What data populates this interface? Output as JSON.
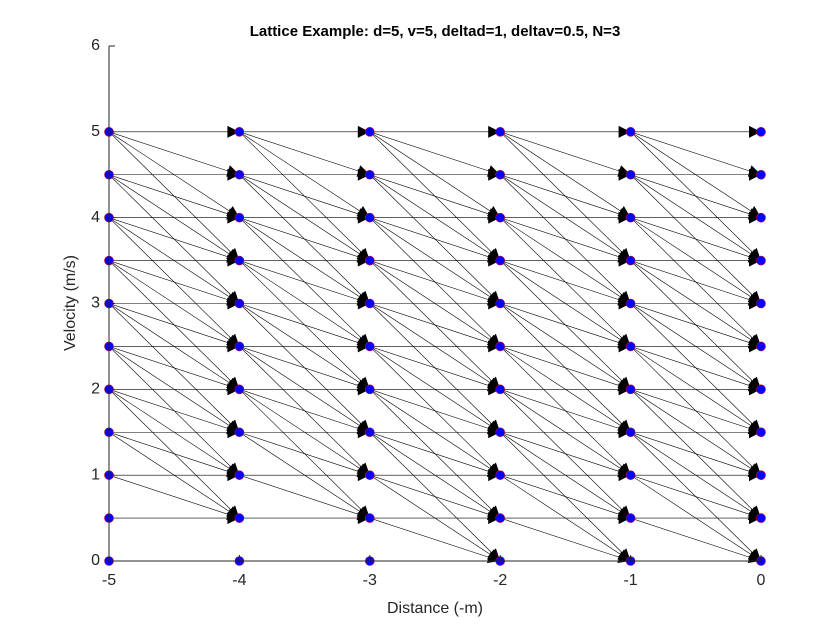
{
  "chart_data": {
    "type": "lattice",
    "title": "Lattice Example: d=5, v=5, deltad=1, deltav=0.5, N=3",
    "x_label": "Distance (-m)",
    "y_label": "Velocity (m/s)",
    "x": [
      -5,
      -4,
      -3,
      -2,
      -1,
      0
    ],
    "velocities": [
      0,
      0.5,
      1,
      1.5,
      2,
      2.5,
      3,
      3.5,
      4,
      4.5,
      5
    ],
    "node_color": "#0000ff",
    "edge_color": "#000000",
    "xlim": [
      -5,
      0
    ],
    "ylim": [
      0,
      6
    ],
    "xticks": [
      -5,
      -4,
      -3,
      -2,
      -1,
      0
    ],
    "yticks": [
      0,
      1,
      2,
      3,
      4,
      5,
      6
    ],
    "edges": [
      [
        -5,
        5,
        [
          5,
          4.5,
          4,
          3.5
        ]
      ],
      [
        -5,
        4.5,
        [
          4.5,
          4,
          3.5,
          3
        ]
      ],
      [
        -5,
        4,
        [
          4,
          3.5,
          3,
          2.5
        ]
      ],
      [
        -5,
        3.5,
        [
          3.5,
          3,
          2.5,
          2
        ]
      ],
      [
        -5,
        3,
        [
          3,
          2.5,
          2,
          1.5
        ]
      ],
      [
        -5,
        2.5,
        [
          2.5,
          2,
          1.5,
          1
        ]
      ],
      [
        -5,
        2,
        [
          2,
          1.5,
          1,
          0.5
        ]
      ],
      [
        -5,
        1.5,
        [
          1.5,
          1,
          0.5
        ]
      ],
      [
        -5,
        1,
        [
          1,
          0.5
        ]
      ],
      [
        -5,
        0.5,
        [
          0.5
        ]
      ],
      [
        -4,
        5,
        [
          5,
          4.5,
          4,
          3.5
        ]
      ],
      [
        -4,
        4.5,
        [
          4.5,
          4,
          3.5,
          3
        ]
      ],
      [
        -4,
        4,
        [
          4,
          3.5,
          3,
          2.5
        ]
      ],
      [
        -4,
        3.5,
        [
          3.5,
          3,
          2.5,
          2
        ]
      ],
      [
        -4,
        3,
        [
          3,
          2.5,
          2,
          1.5
        ]
      ],
      [
        -4,
        2.5,
        [
          2.5,
          2,
          1.5,
          1
        ]
      ],
      [
        -4,
        2,
        [
          2,
          1.5,
          1,
          0.5
        ]
      ],
      [
        -4,
        1.5,
        [
          1.5,
          1,
          0.5
        ]
      ],
      [
        -4,
        1,
        [
          1,
          0.5
        ]
      ],
      [
        -4,
        0.5,
        [
          0.5
        ]
      ],
      [
        -3,
        5,
        [
          5,
          4.5,
          4,
          3.5
        ]
      ],
      [
        -3,
        4.5,
        [
          4.5,
          4,
          3.5,
          3
        ]
      ],
      [
        -3,
        4,
        [
          4,
          3.5,
          3,
          2.5
        ]
      ],
      [
        -3,
        3.5,
        [
          3.5,
          3,
          2.5,
          2
        ]
      ],
      [
        -3,
        3,
        [
          3,
          2.5,
          2,
          1.5
        ]
      ],
      [
        -3,
        2.5,
        [
          2.5,
          2,
          1.5,
          1
        ]
      ],
      [
        -3,
        2,
        [
          2,
          1.5,
          1,
          0.5
        ]
      ],
      [
        -3,
        1.5,
        [
          1.5,
          1,
          0.5,
          0
        ]
      ],
      [
        -3,
        1,
        [
          1,
          0.5,
          0
        ]
      ],
      [
        -3,
        0.5,
        [
          0.5,
          0
        ]
      ],
      [
        -2,
        5,
        [
          5,
          4.5,
          4,
          3.5
        ]
      ],
      [
        -2,
        4.5,
        [
          4.5,
          4,
          3.5,
          3
        ]
      ],
      [
        -2,
        4,
        [
          4,
          3.5,
          3,
          2.5
        ]
      ],
      [
        -2,
        3.5,
        [
          3.5,
          3,
          2.5,
          2
        ]
      ],
      [
        -2,
        3,
        [
          3,
          2.5,
          2,
          1.5
        ]
      ],
      [
        -2,
        2.5,
        [
          2.5,
          2,
          1.5,
          1
        ]
      ],
      [
        -2,
        2,
        [
          2,
          1.5,
          1,
          0.5
        ]
      ],
      [
        -2,
        1.5,
        [
          1.5,
          1,
          0.5,
          0
        ]
      ],
      [
        -2,
        1,
        [
          1,
          0.5,
          0
        ]
      ],
      [
        -2,
        0.5,
        [
          0.5,
          0
        ]
      ],
      [
        -1,
        5,
        [
          5,
          4.5,
          4,
          3.5
        ]
      ],
      [
        -1,
        4.5,
        [
          4.5,
          4,
          3.5,
          3
        ]
      ],
      [
        -1,
        4,
        [
          4,
          3.5,
          3,
          2.5
        ]
      ],
      [
        -1,
        3.5,
        [
          3.5,
          3,
          2.5,
          2
        ]
      ],
      [
        -1,
        3,
        [
          3,
          2.5,
          2,
          1.5
        ]
      ],
      [
        -1,
        2.5,
        [
          2.5,
          2,
          1.5,
          1
        ]
      ],
      [
        -1,
        2,
        [
          2,
          1.5,
          1,
          0.5
        ]
      ],
      [
        -1,
        1.5,
        [
          1.5,
          1,
          0.5,
          0
        ]
      ],
      [
        -1,
        1,
        [
          1,
          0.5,
          0
        ]
      ],
      [
        -1,
        0.5,
        [
          0.5,
          0
        ]
      ]
    ]
  }
}
